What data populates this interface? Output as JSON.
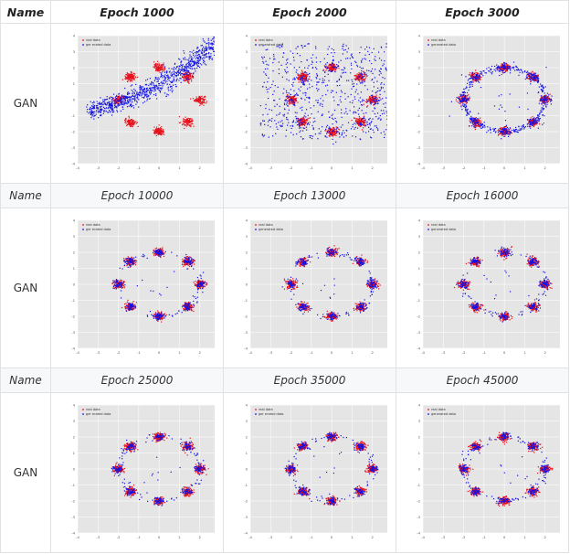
{
  "table": {
    "rows": [
      {
        "header": [
          "Name",
          "Epoch 1000",
          "Epoch 2000",
          "Epoch 3000"
        ],
        "label": "GAN"
      },
      {
        "header": [
          "Name",
          "Epoch 10000",
          "Epoch 13000",
          "Epoch 16000"
        ],
        "label": "GAN"
      },
      {
        "header": [
          "Name",
          "Epoch 25000",
          "Epoch 35000",
          "Epoch 45000"
        ],
        "label": "GAN"
      }
    ]
  },
  "legend_labels": {
    "a": [
      "real data",
      "generated data"
    ],
    "b": [
      "real data",
      "ger erated data"
    ]
  },
  "colors": {
    "real": "#e8101b",
    "generated": "#1212e6",
    "panel": "#e5e5e5"
  },
  "chart_data": {
    "type": "scatter",
    "x_ticks": [
      "-4",
      "-3",
      "-2",
      "-1",
      "0",
      "1",
      "2",
      "3"
    ],
    "y_ticks": [
      "4",
      "3",
      "2",
      "1",
      "0",
      "-1",
      "-2",
      "-3",
      "-4"
    ],
    "xlim": [
      -4,
      3
    ],
    "ylim": [
      -4,
      4
    ],
    "real_data_modes": [
      [
        2,
        0
      ],
      [
        1.41,
        1.41
      ],
      [
        0,
        2
      ],
      [
        -1.41,
        1.41
      ],
      [
        -2,
        0
      ],
      [
        -1.41,
        -1.41
      ],
      [
        0,
        -2
      ],
      [
        1.41,
        -1.41
      ]
    ],
    "panels": [
      {
        "epoch": "Epoch 1000",
        "legend": "b",
        "generated": "curved band from (-3.5,-0.7) through (0,0.8) to (3,3.6), not covering modes"
      },
      {
        "epoch": "Epoch 2000",
        "legend": "a",
        "generated": "diffuse cloud over the ring, x -3.5..3, y -2.5..3.5"
      },
      {
        "epoch": "Epoch 3000",
        "legend": "a",
        "generated": "ring of radius 2 with most points near the modes"
      },
      {
        "epoch": "Epoch 10000",
        "legend": "b",
        "generated": "points on the 8 modes plus sparse ring"
      },
      {
        "epoch": "Epoch 13000",
        "legend": "a",
        "generated": "points on the 8 modes plus sparse ring"
      },
      {
        "epoch": "Epoch 16000",
        "legend": "a",
        "generated": "points on the 8 modes plus sparse ring"
      },
      {
        "epoch": "Epoch 25000",
        "legend": "b",
        "generated": "points on the 8 modes plus sparse ring"
      },
      {
        "epoch": "Epoch 35000",
        "legend": "b",
        "generated": "points on the 8 modes plus sparse ring"
      },
      {
        "epoch": "Epoch 45000",
        "legend": "a",
        "generated": "points on the 8 modes plus sparse ring"
      }
    ]
  }
}
